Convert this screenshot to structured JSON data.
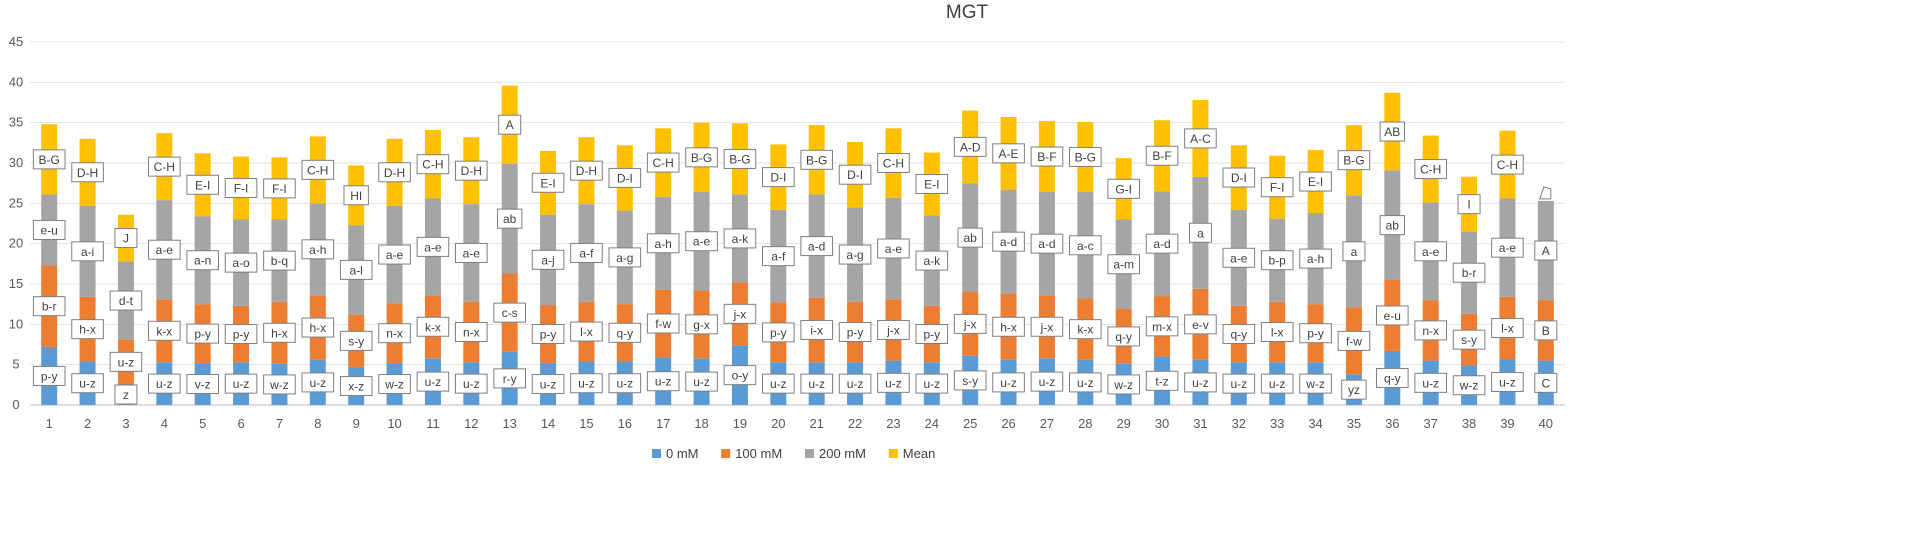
{
  "chart_data": {
    "type": "bar",
    "stacked": true,
    "title": "MGT",
    "xlabel": "",
    "ylabel": "",
    "ylim": [
      0,
      45
    ],
    "yticks": [
      0,
      5,
      10,
      15,
      20,
      25,
      30,
      35,
      40,
      45
    ],
    "grid": true,
    "legend_position": "bottom",
    "categories": [
      "1",
      "2",
      "3",
      "4",
      "5",
      "6",
      "7",
      "8",
      "9",
      "10",
      "11",
      "12",
      "13",
      "14",
      "15",
      "16",
      "17",
      "18",
      "19",
      "20",
      "21",
      "22",
      "23",
      "24",
      "25",
      "26",
      "27",
      "28",
      "29",
      "30",
      "31",
      "32",
      "33",
      "34",
      "35",
      "36",
      "37",
      "38",
      "39",
      "40"
    ],
    "series": [
      {
        "name": "0 mM",
        "color": "#5b9bd5",
        "values": [
          7.2,
          5.4,
          2.6,
          5.3,
          5.2,
          5.3,
          5.1,
          5.6,
          4.7,
          5.2,
          5.8,
          5.3,
          6.6,
          5.2,
          5.4,
          5.4,
          5.9,
          5.8,
          7.4,
          5.3,
          5.3,
          5.3,
          5.5,
          5.3,
          6.1,
          5.6,
          5.8,
          5.6,
          5.1,
          6.0,
          5.6,
          5.3,
          5.3,
          5.3,
          3.8,
          6.7,
          5.5,
          4.9,
          5.7,
          5.5
        ],
        "labels": [
          "p-y",
          "u-z",
          "z",
          "u-z",
          "v-z",
          "u-z",
          "w-z",
          "u-z",
          "x-z",
          "w-z",
          "u-z",
          "u-z",
          "r-y",
          "u-z",
          "u-z",
          "u-z",
          "u-z",
          "u-z",
          "o-y",
          "u-z",
          "u-z",
          "u-z",
          "u-z",
          "u-z",
          "s-y",
          "u-z",
          "u-z",
          "u-z",
          "w-z",
          "t-z",
          "u-z",
          "u-z",
          "u-z",
          "w-z",
          "yz",
          "q-y",
          "u-z",
          "w-z",
          "u-z",
          "C"
        ]
      },
      {
        "name": "100 mM",
        "color": "#ed7d31",
        "values": [
          10.1,
          8.0,
          5.5,
          7.8,
          7.3,
          7.0,
          7.7,
          8.0,
          6.5,
          7.4,
          7.8,
          7.5,
          9.7,
          7.2,
          7.4,
          7.1,
          8.4,
          8.4,
          7.8,
          7.4,
          8.0,
          7.5,
          7.6,
          7.0,
          7.9,
          8.2,
          7.8,
          7.6,
          6.8,
          7.5,
          8.8,
          7.0,
          7.5,
          7.2,
          8.3,
          8.8,
          7.5,
          6.4,
          7.7,
          7.5
        ],
        "labels": [
          "b-r",
          "h-x",
          "u-z",
          "k-x",
          "p-y",
          "p-y",
          "h-x",
          "h-x",
          "s-y",
          "n-x",
          "k-x",
          "n-x",
          "c-s",
          "p-y",
          "l-x",
          "q-y",
          "f-w",
          "g-x",
          "j-x",
          "p-y",
          "i-x",
          "p-y",
          "j-x",
          "p-y",
          "j-x",
          "h-x",
          "j-x",
          "k-x",
          "q-y",
          "m-x",
          "e-v",
          "q-y",
          "l-x",
          "p-y",
          "f-w",
          "e-u",
          "n-x",
          "s-y",
          "l-x",
          "B"
        ]
      },
      {
        "name": "200 mM",
        "color": "#a5a5a5",
        "values": [
          8.8,
          11.3,
          9.7,
          12.3,
          10.9,
          10.7,
          10.2,
          11.4,
          11.1,
          12.1,
          12.0,
          12.1,
          13.6,
          11.2,
          12.1,
          11.6,
          11.5,
          12.2,
          10.9,
          11.5,
          12.8,
          11.7,
          12.6,
          11.2,
          13.5,
          12.9,
          12.8,
          13.2,
          11.1,
          13.0,
          13.9,
          11.9,
          10.3,
          11.3,
          13.9,
          13.6,
          12.1,
          10.2,
          12.2,
          12.3
        ],
        "labels": [
          "e-u",
          "a-i",
          "d-t",
          "a-e",
          "a-n",
          "a-o",
          "b-q",
          "a-h",
          "a-l",
          "a-e",
          "a-e",
          "a-e",
          "ab",
          "a-j",
          "a-f",
          "a-g",
          "a-h",
          "a-e",
          "a-k",
          "a-f",
          "a-d",
          "a-g",
          "a-e",
          "a-k",
          "ab",
          "a-d",
          "a-d",
          "a-c",
          "a-m",
          "a-d",
          "a",
          "a-e",
          "b-p",
          "a-h",
          "a",
          "ab",
          "a-e",
          "b-r",
          "a-e",
          "A"
        ]
      },
      {
        "name": "Mean",
        "color": "#ffc000",
        "values": [
          8.7,
          8.3,
          5.8,
          8.3,
          7.8,
          7.8,
          7.7,
          8.3,
          7.4,
          8.3,
          8.5,
          8.3,
          9.7,
          7.9,
          8.3,
          8.1,
          8.5,
          8.6,
          8.8,
          8.1,
          8.6,
          8.1,
          8.6,
          7.8,
          9.0,
          9.0,
          8.8,
          8.7,
          7.6,
          8.8,
          9.5,
          8.0,
          7.8,
          7.8,
          8.7,
          9.6,
          8.3,
          6.8,
          8.4,
          0.0
        ],
        "labels": [
          "B-G",
          "D-H",
          "J",
          "C-H",
          "E-I",
          "F-I",
          "F-I",
          "C-H",
          "HI",
          "D-H",
          "C-H",
          "D-H",
          "A",
          "E-I",
          "D-H",
          "D-I",
          "C-H",
          "B-G",
          "B-G",
          "D-I",
          "B-G",
          "D-I",
          "C-H",
          "E-I",
          "A-D",
          "A-E",
          "B-F",
          "B-G",
          "G-I",
          "B-F",
          "A-C",
          "D-I",
          "F-I",
          "E-I",
          "B-G",
          "AB",
          "C-H",
          "I",
          "C-H",
          ""
        ]
      }
    ]
  }
}
